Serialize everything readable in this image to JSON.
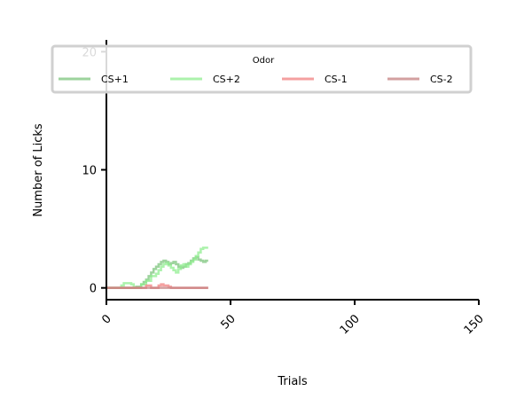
{
  "chart_data": {
    "type": "line",
    "xlabel": "Trials",
    "ylabel": "Number of Licks",
    "xlim": [
      0,
      150
    ],
    "ylim": [
      -1,
      21
    ],
    "xticks": [
      0,
      50,
      100,
      150
    ],
    "yticks": [
      0,
      10,
      20
    ],
    "grid": false,
    "legend": {
      "title": "Odor",
      "placement": "top"
    },
    "series": [
      {
        "name": "CS+1",
        "color": "#7cc47c",
        "x": [
          0,
          10,
          12,
          14,
          15,
          16,
          17,
          18,
          19,
          20,
          21,
          22,
          23,
          24,
          25,
          26,
          27,
          28,
          29,
          30,
          31,
          32,
          33,
          34,
          35,
          36,
          37,
          38,
          39,
          40,
          41
        ],
        "y": [
          0,
          0,
          0.1,
          0.3,
          0.5,
          0.7,
          1,
          1.3,
          1.6,
          1.8,
          2,
          2.2,
          2.3,
          2.2,
          2,
          2.1,
          2.2,
          2,
          1.8,
          1.7,
          1.8,
          2,
          2.1,
          2.3,
          2.5,
          2.6,
          2.4,
          2.3,
          2.2,
          2.3,
          2.3
        ]
      },
      {
        "name": "CS+2",
        "color": "#90ee90",
        "x": [
          0,
          5,
          6,
          7,
          8,
          9,
          10,
          11,
          12,
          14,
          16,
          18,
          20,
          21,
          22,
          23,
          24,
          25,
          26,
          27,
          28,
          29,
          30,
          31,
          32,
          33,
          34,
          35,
          36,
          37,
          38,
          39,
          40,
          41
        ],
        "y": [
          0,
          0,
          0.2,
          0.4,
          0.4,
          0.4,
          0.3,
          0,
          0,
          0.3,
          0.6,
          1,
          1.2,
          1.5,
          1.8,
          2,
          2.1,
          1.9,
          1.7,
          1.5,
          1.3,
          1.6,
          1.9,
          2,
          1.8,
          2,
          2.2,
          2.4,
          2.7,
          3,
          3.3,
          3.4,
          3.4,
          3.4
        ]
      },
      {
        "name": "CS-1",
        "color": "#f08080",
        "x": [
          0,
          15,
          16,
          17,
          18,
          19,
          20,
          21,
          22,
          23,
          24,
          25,
          26,
          27,
          28,
          41
        ],
        "y": [
          0,
          0,
          0.2,
          0.2,
          0,
          0,
          0,
          0.2,
          0.3,
          0.2,
          0.2,
          0.1,
          0,
          0,
          0,
          0
        ]
      },
      {
        "name": "CS-2",
        "color": "#c48080",
        "x": [
          0,
          41
        ],
        "y": [
          0,
          0
        ]
      }
    ]
  }
}
